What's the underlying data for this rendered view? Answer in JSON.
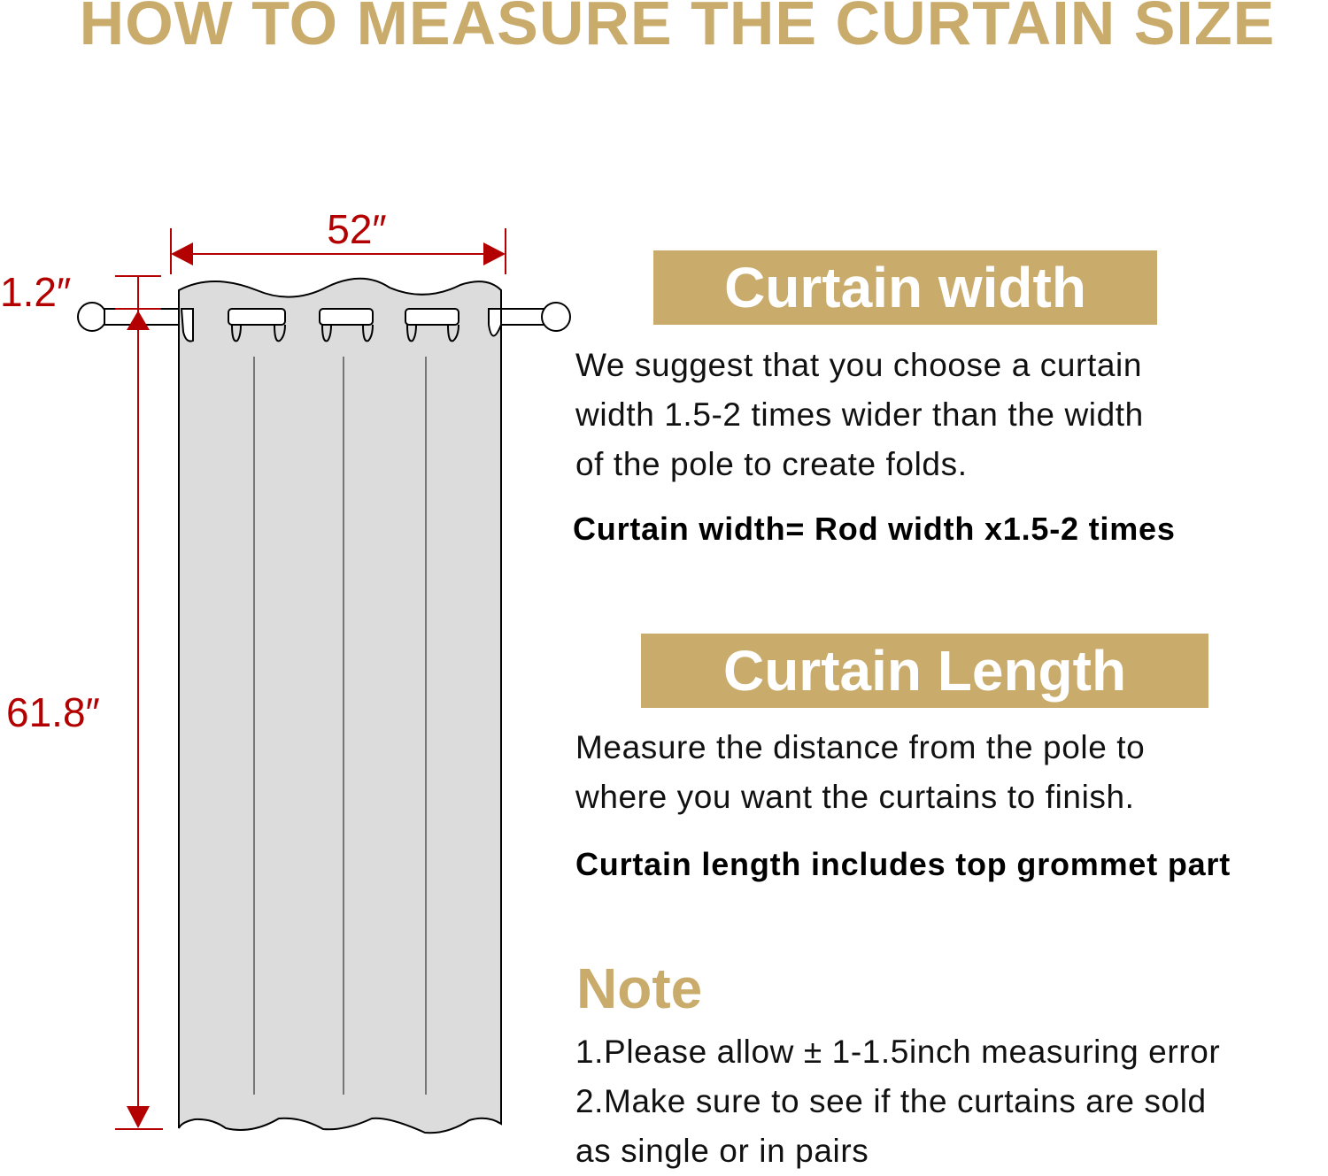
{
  "title": "HOW TO MEASURE THE CURTAIN SIZE",
  "colors": {
    "gold": "#C9AB6C",
    "dimension_red": "#B30000",
    "curtain_fill": "#DCDCDC"
  },
  "diagram": {
    "width_label": "52″",
    "header_label": "1.2″",
    "length_label": "61.8″",
    "grommet_count": 5
  },
  "width_section": {
    "heading": "Curtain width",
    "lines": [
      "We suggest that you choose a curtain",
      "width 1.5-2 times wider than the width",
      "of the pole to create folds."
    ],
    "formula": "Curtain width= Rod width x1.5-2 times"
  },
  "length_section": {
    "heading": "Curtain Length",
    "lines": [
      "Measure the distance from the pole to",
      "where you want the curtains to finish."
    ],
    "formula": "Curtain length includes top grommet part"
  },
  "note": {
    "heading": "Note",
    "lines": [
      "1.Please allow ± 1-1.5inch measuring error",
      "2.Make sure to see if the curtains are sold",
      "as single or in pairs"
    ]
  }
}
